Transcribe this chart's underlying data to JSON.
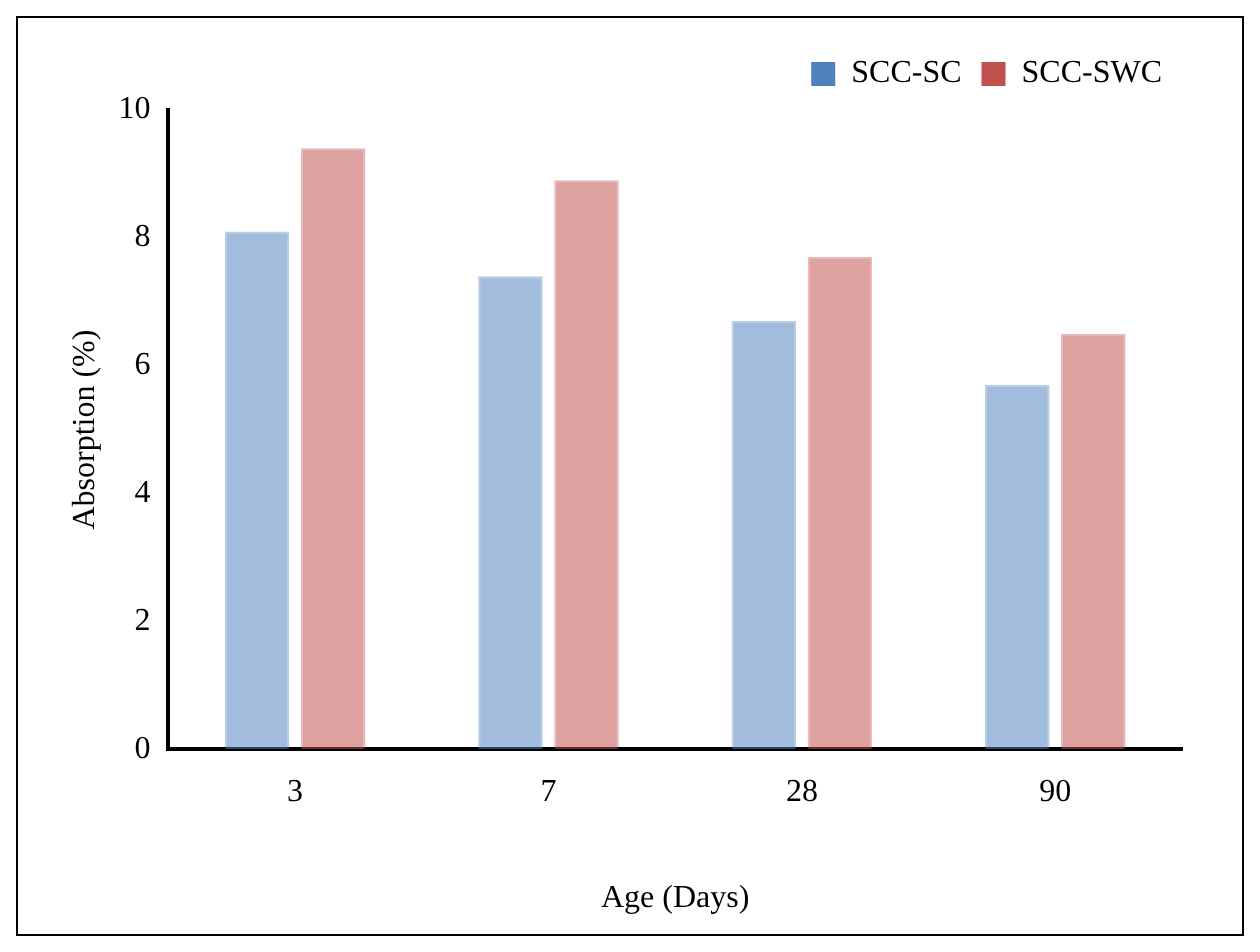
{
  "chart_data": {
    "type": "bar",
    "xlabel": "Age (Days)",
    "ylabel": "Absorption (%)",
    "categories": [
      "3",
      "7",
      "28",
      "90"
    ],
    "series": [
      {
        "name": "SCC-SC",
        "color": "#4f81bd",
        "values": [
          8.1,
          7.4,
          6.7,
          5.7
        ]
      },
      {
        "name": "SCC-SWC",
        "color": "#c0504d",
        "values": [
          9.4,
          8.9,
          7.7,
          6.5
        ]
      }
    ],
    "ylim": [
      0,
      10
    ],
    "yticks": [
      0,
      2,
      4,
      6,
      8,
      10
    ],
    "grid": false,
    "legend": "top right"
  }
}
